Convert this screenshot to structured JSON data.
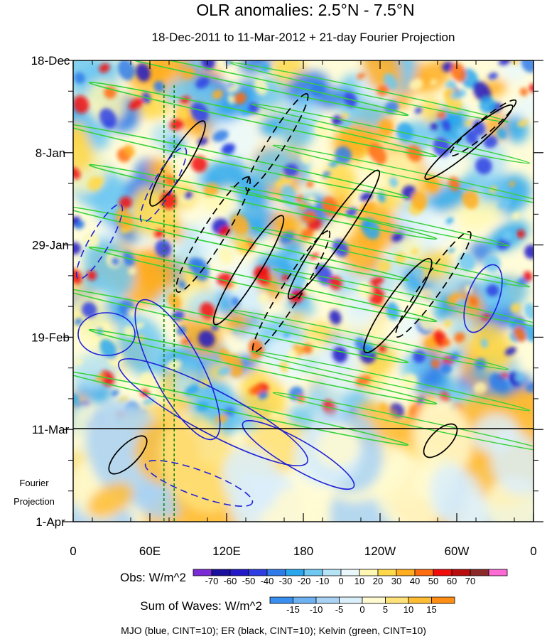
{
  "chart_data": {
    "type": "heatmap",
    "title": "OLR anomalies: 2.5°N - 7.5°N",
    "subtitle": "18-Dec-2011 to 11-Mar-2012 + 21-day Fourier Projection",
    "x_ticks": [
      "0",
      "60E",
      "120E",
      "180",
      "120W",
      "60W",
      "0"
    ],
    "x_values": [
      0,
      60,
      120,
      180,
      240,
      300,
      360
    ],
    "xlim": [
      0,
      360
    ],
    "y_ticks": [
      "18-Dec",
      "8-Jan",
      "29-Jan",
      "19-Feb",
      "11-Mar",
      "1-Apr"
    ],
    "y_dates": [
      "2011-12-18",
      "2012-01-08",
      "2012-01-29",
      "2012-02-19",
      "2012-03-11",
      "2012-04-01"
    ],
    "ylim": [
      "2011-12-18",
      "2012-04-01"
    ],
    "projection_label": [
      "Fourier",
      "Projection"
    ],
    "observed_end": "2012-03-11",
    "obs_colorbar": {
      "label": "Obs: W/m^2",
      "levels": [
        -70,
        -60,
        -50,
        -40,
        -30,
        -20,
        -10,
        0,
        10,
        20,
        30,
        40,
        50,
        60,
        70
      ],
      "colors": [
        "#7a2bd6",
        "#1a0f9c",
        "#2218c7",
        "#2f3ee3",
        "#2f7be9",
        "#29a7ee",
        "#6ec8f2",
        "#b6e3f5",
        "#eaf8fb",
        "#fff8b3",
        "#ffd84a",
        "#ffad1f",
        "#ff6b0f",
        "#f10b0b",
        "#bb0d0d",
        "#8c2a2a",
        "#ff6bd4"
      ]
    },
    "waves_colorbar": {
      "label": "Sum of Waves: W/m^2",
      "levels": [
        -15,
        -10,
        -5,
        0,
        5,
        10,
        15
      ],
      "colors": [
        "#3a8ef0",
        "#6fb2f2",
        "#a9d2f4",
        "#dbeffa",
        "#fffad0",
        "#ffe27a",
        "#ffbd35",
        "#ff8f14"
      ]
    },
    "vertical_reference_lines": [
      {
        "lon": 71,
        "color": "#0a8a0a"
      },
      {
        "lon": 79,
        "color": "#0a8a0a"
      }
    ],
    "footer": "MJO (blue, CINT=10); ER (black, CINT=10); Kelvin (green, CINT=10)",
    "overlay_colors": {
      "mjo": "#1f22d8",
      "er": "#000000",
      "kelvin": "#37d23a"
    }
  }
}
